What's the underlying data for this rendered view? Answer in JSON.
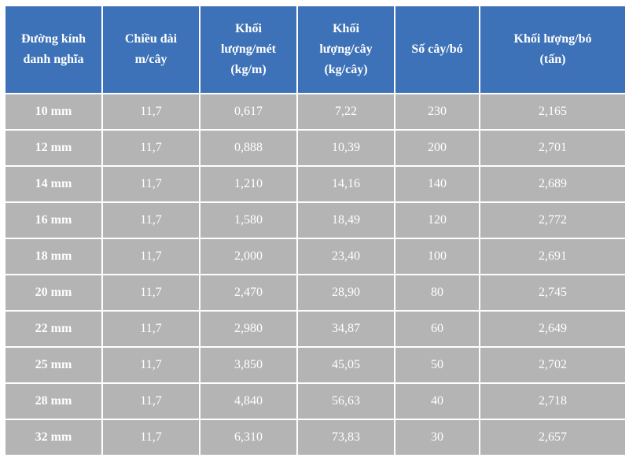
{
  "headers": [
    [
      "Đường kính",
      "danh nghĩa"
    ],
    [
      "Chiều dài",
      "m/cây"
    ],
    [
      "Khối",
      "lượng/mét",
      "(kg/m)"
    ],
    [
      "Khối",
      "lượng/cây",
      "(kg/cây)"
    ],
    [
      "Số cây/bó"
    ],
    [
      "Khối lượng/bó",
      "(tấn)"
    ]
  ],
  "rows": [
    [
      "10 mm",
      "11,7",
      "0,617",
      "7,22",
      "230",
      "2,165"
    ],
    [
      "12 mm",
      "11,7",
      "0,888",
      "10,39",
      "200",
      "2,701"
    ],
    [
      "14 mm",
      "11,7",
      "1,210",
      "14,16",
      "140",
      "2,689"
    ],
    [
      "16 mm",
      "11,7",
      "1,580",
      "18,49",
      "120",
      "2,772"
    ],
    [
      "18 mm",
      "11,7",
      "2,000",
      "23,40",
      "100",
      "2,691"
    ],
    [
      "20 mm",
      "11,7",
      "2,470",
      "28,90",
      "80",
      "2,745"
    ],
    [
      "22 mm",
      "11,7",
      "2,980",
      "34,87",
      "60",
      "2,649"
    ],
    [
      "25 mm",
      "11,7",
      "3,850",
      "45,05",
      "50",
      "2,702"
    ],
    [
      "28 mm",
      "11,7",
      "4,840",
      "56,63",
      "40",
      "2,718"
    ],
    [
      "32 mm",
      "11,7",
      "6,310",
      "73,83",
      "30",
      "2,657"
    ]
  ],
  "colors": {
    "header_bg": "#3d72b8",
    "cell_bg": "#b4b4b4",
    "text": "#ffffff"
  }
}
